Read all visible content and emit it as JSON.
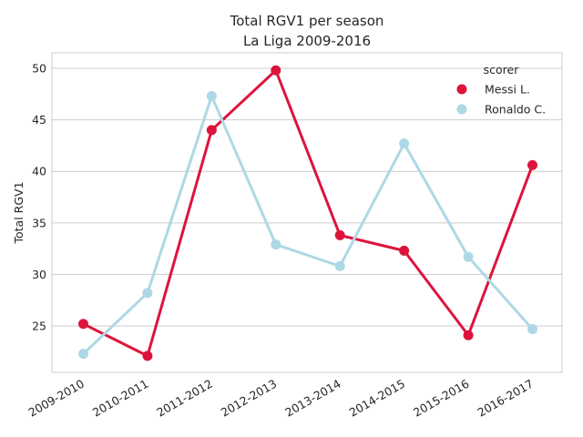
{
  "chart_data": {
    "type": "line",
    "title_lines": [
      "Total RGV1 per season",
      "La Liga 2009-2016"
    ],
    "xlabel": "",
    "ylabel": "Total RGV1",
    "categories": [
      "2009-2010",
      "2010-2011",
      "2011-2012",
      "2012-2013",
      "2013-2014",
      "2014-2015",
      "2015-2016",
      "2016-2017"
    ],
    "ylim": [
      20.5,
      51.5
    ],
    "yticks": [
      25,
      30,
      35,
      40,
      45,
      50
    ],
    "grid": true,
    "legend": {
      "title": "scorer",
      "placement": "upper-right"
    },
    "series": [
      {
        "name": "Messi L.",
        "color": "#dc143c",
        "values": [
          25.2,
          22.1,
          44.0,
          49.8,
          33.8,
          32.3,
          24.1,
          40.6
        ]
      },
      {
        "name": "Ronaldo C.",
        "color": "#add8e6",
        "values": [
          22.3,
          28.2,
          47.3,
          32.9,
          30.8,
          42.7,
          31.7,
          24.7
        ]
      }
    ]
  }
}
